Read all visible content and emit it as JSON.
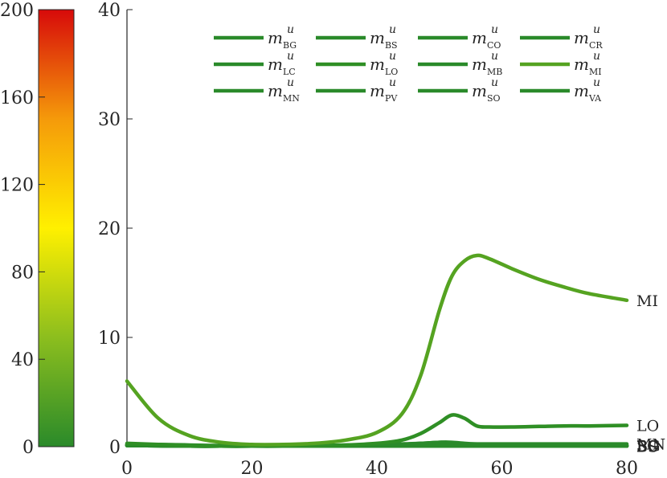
{
  "chart_data": {
    "type": "line",
    "x": [
      0,
      5,
      10,
      15,
      20,
      25,
      30,
      35,
      40,
      44,
      47,
      50,
      52,
      54,
      56,
      58,
      62,
      66,
      70,
      74,
      80
    ],
    "xlim": [
      0,
      80
    ],
    "ylim": [
      0,
      40
    ],
    "xticks": [
      "0",
      "20",
      "40",
      "60",
      "80"
    ],
    "yticks": [
      "0",
      "10",
      "20",
      "30",
      "40"
    ],
    "legend_sup": "u",
    "legend_placement": "top",
    "series": [
      {
        "name": "BG",
        "color": "#2a8a2a",
        "values": [
          0.1,
          0.1,
          0.1,
          0.08,
          0.08,
          0.08,
          0.08,
          0.08,
          0.08,
          0.1,
          0.12,
          0.15,
          0.15,
          0.12,
          0.1,
          0.1,
          0.1,
          0.1,
          0.1,
          0.1,
          0.1
        ]
      },
      {
        "name": "BS",
        "color": "#2a8a2a",
        "values": [
          0.1,
          0.08,
          0.05,
          0.05,
          0.05,
          0.05,
          0.05,
          0.05,
          0.05,
          0.05,
          0.05,
          0.05,
          0.05,
          0.05,
          0.05,
          0.05,
          0.05,
          0.05,
          0.05,
          0.05,
          0.05
        ]
      },
      {
        "name": "CO",
        "color": "#2a8a2a",
        "values": [
          0.2,
          0.15,
          0.1,
          0.05,
          0.05,
          0.05,
          0.1,
          0.12,
          0.15,
          0.2,
          0.3,
          0.4,
          0.35,
          0.2,
          0.15,
          0.15,
          0.15,
          0.15,
          0.15,
          0.15,
          0.15
        ]
      },
      {
        "name": "CR",
        "color": "#2a8a2a",
        "values": [
          0.1,
          0.08,
          0.05,
          0.05,
          0.05,
          0.05,
          0.05,
          0.05,
          0.05,
          0.05,
          0.05,
          0.05,
          0.05,
          0.05,
          0.05,
          0.05,
          0.05,
          0.05,
          0.05,
          0.05,
          0.05
        ]
      },
      {
        "name": "LC",
        "color": "#2a8a2a",
        "values": [
          0.2,
          0.15,
          0.1,
          0.05,
          0.05,
          0.05,
          0.05,
          0.05,
          0.05,
          0.05,
          0.05,
          0.05,
          0.05,
          0.05,
          0.05,
          0.05,
          0.05,
          0.05,
          0.05,
          0.05,
          0.05
        ]
      },
      {
        "name": "LO",
        "color": "#2f8f25",
        "values": [
          0.3,
          0.2,
          0.1,
          0.05,
          0.05,
          0.05,
          0.1,
          0.15,
          0.3,
          0.6,
          1.2,
          2.2,
          2.9,
          2.6,
          1.9,
          1.8,
          1.8,
          1.85,
          1.9,
          1.9,
          1.95
        ]
      },
      {
        "name": "MB",
        "color": "#2a8a2a",
        "values": [
          0.1,
          0.08,
          0.05,
          0.05,
          0.05,
          0.05,
          0.05,
          0.05,
          0.05,
          0.05,
          0.05,
          0.05,
          0.05,
          0.05,
          0.05,
          0.05,
          0.05,
          0.05,
          0.05,
          0.05,
          0.05
        ]
      },
      {
        "name": "MI",
        "color": "#55a321",
        "values": [
          6.0,
          2.6,
          1.0,
          0.4,
          0.2,
          0.2,
          0.3,
          0.6,
          1.3,
          3.0,
          6.5,
          12.5,
          15.6,
          17.0,
          17.5,
          17.2,
          16.2,
          15.3,
          14.6,
          14.0,
          13.4
        ]
      },
      {
        "name": "MN",
        "color": "#2a8a2a",
        "values": [
          0.2,
          0.2,
          0.15,
          0.1,
          0.1,
          0.1,
          0.1,
          0.15,
          0.2,
          0.25,
          0.3,
          0.4,
          0.4,
          0.3,
          0.25,
          0.25,
          0.25,
          0.25,
          0.25,
          0.25,
          0.25
        ]
      },
      {
        "name": "PV",
        "color": "#2a8a2a",
        "values": [
          0.1,
          0.08,
          0.05,
          0.05,
          0.05,
          0.05,
          0.05,
          0.05,
          0.05,
          0.05,
          0.05,
          0.05,
          0.05,
          0.05,
          0.05,
          0.05,
          0.05,
          0.05,
          0.05,
          0.05,
          0.05
        ]
      },
      {
        "name": "SO",
        "color": "#2a8a2a",
        "values": [
          0.15,
          0.1,
          0.08,
          0.05,
          0.05,
          0.05,
          0.05,
          0.08,
          0.1,
          0.12,
          0.15,
          0.2,
          0.2,
          0.15,
          0.12,
          0.12,
          0.12,
          0.12,
          0.12,
          0.12,
          0.12
        ]
      },
      {
        "name": "VA",
        "color": "#2a8a2a",
        "values": [
          0.1,
          0.08,
          0.05,
          0.05,
          0.05,
          0.05,
          0.05,
          0.05,
          0.05,
          0.05,
          0.05,
          0.05,
          0.05,
          0.05,
          0.05,
          0.05,
          0.05,
          0.05,
          0.05,
          0.05,
          0.05
        ]
      }
    ],
    "end_labels": [
      {
        "text": "MI",
        "series": "MI"
      },
      {
        "text": "LO",
        "series": "LO"
      },
      {
        "text": "BG",
        "series": "BG"
      },
      {
        "text": "MN",
        "series": "MN"
      },
      {
        "text": "SO",
        "series": "SO"
      },
      {
        "text": "BS",
        "series": "BS"
      }
    ],
    "colorbar": {
      "ticks": [
        "0",
        "40",
        "80",
        "120",
        "160",
        "200"
      ],
      "range": [
        0,
        200
      ],
      "colors": [
        "#2a8a2a",
        "#8cbe1e",
        "#fff000",
        "#f59a0a",
        "#d70a0a"
      ]
    }
  }
}
